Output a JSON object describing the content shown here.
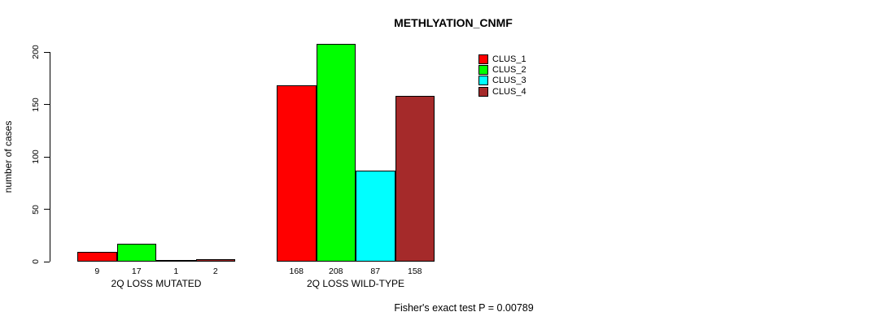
{
  "chart_data": {
    "type": "bar",
    "title": "METHLYATION_CNMF",
    "xlabel": "",
    "ylabel": "number of cases",
    "ylim": [
      0,
      200
    ],
    "yticks": [
      0,
      50,
      100,
      150,
      200
    ],
    "categories": [
      "2Q LOSS MUTATED",
      "2Q LOSS WILD-TYPE"
    ],
    "series": [
      {
        "name": "CLUS_1",
        "color": "#FF0000",
        "values": [
          9,
          168
        ]
      },
      {
        "name": "CLUS_2",
        "color": "#00FF00",
        "values": [
          17,
          208
        ]
      },
      {
        "name": "CLUS_3",
        "color": "#00FFFF",
        "values": [
          1,
          87
        ]
      },
      {
        "name": "CLUS_4",
        "color": "#A52A2A",
        "values": [
          2,
          158
        ]
      }
    ],
    "bar_value_labels": true,
    "legend_position": "top-right",
    "grid": false,
    "annotation": "Fisher's exact test P = 0.00789"
  }
}
